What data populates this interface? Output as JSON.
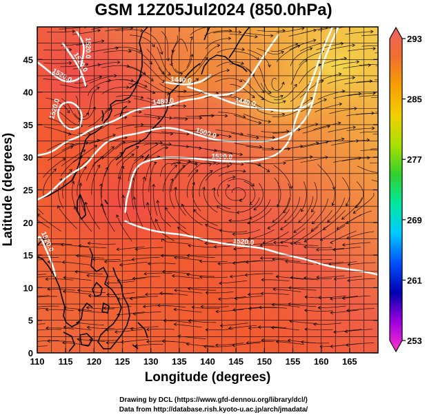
{
  "title": "GSM 12Z05Jul2024 (850.0hPa)",
  "axes": {
    "xlabel": "Longitude (degrees)",
    "ylabel": "Latitude  (degrees)",
    "x_range": [
      110,
      170
    ],
    "y_range": [
      0,
      50
    ],
    "x_ticks": [
      {
        "value": 110,
        "label": "110"
      },
      {
        "value": 115,
        "label": "115"
      },
      {
        "value": 120,
        "label": "120"
      },
      {
        "value": 125,
        "label": "125"
      },
      {
        "value": 130,
        "label": "130"
      },
      {
        "value": 135,
        "label": "135"
      },
      {
        "value": 140,
        "label": "140"
      },
      {
        "value": 145,
        "label": "145"
      },
      {
        "value": 150,
        "label": "150"
      },
      {
        "value": 155,
        "label": "155"
      },
      {
        "value": 160,
        "label": "160"
      },
      {
        "value": 165,
        "label": "165"
      }
    ],
    "y_ticks": [
      {
        "value": 0,
        "label": "0"
      },
      {
        "value": 5,
        "label": "5"
      },
      {
        "value": 10,
        "label": "10"
      },
      {
        "value": 15,
        "label": "15"
      },
      {
        "value": 20,
        "label": "20"
      },
      {
        "value": 25,
        "label": "25"
      },
      {
        "value": 30,
        "label": "30"
      },
      {
        "value": 35,
        "label": "35"
      },
      {
        "value": 40,
        "label": "40"
      },
      {
        "value": 45,
        "label": "45"
      }
    ],
    "grid_step_degrees": 2.5
  },
  "colorbar": {
    "min": 253,
    "max": 293,
    "tick_labels": [
      {
        "value": 293,
        "label": "293"
      },
      {
        "value": 285,
        "label": "285"
      },
      {
        "value": 277,
        "label": "277"
      },
      {
        "value": 269,
        "label": "269"
      },
      {
        "value": 261,
        "label": "261"
      },
      {
        "value": 253,
        "label": "253"
      }
    ],
    "stops": [
      "#ff33cc",
      "#a000e0",
      "#0000b0",
      "#0050ff",
      "#00c8ff",
      "#00e8a0",
      "#30d030",
      "#a8e000",
      "#f0d000",
      "#f8a000",
      "#f07030",
      "#f06060"
    ]
  },
  "contours": [
    {
      "label": "1440.0",
      "points": [
        [
          132.5,
          41.5
        ],
        [
          134,
          41.3
        ],
        [
          136.5,
          41.1
        ],
        [
          139,
          41.6
        ],
        [
          140.5,
          42.6
        ]
      ]
    },
    {
      "label": "1440.0",
      "points": [
        [
          136.5,
          40.8
        ],
        [
          139,
          40.1
        ],
        [
          142,
          39.1
        ],
        [
          145,
          38.1
        ],
        [
          148,
          37.6
        ],
        [
          151,
          37.3
        ],
        [
          154,
          37.0
        ],
        [
          156.5,
          37.4
        ],
        [
          158.5,
          38.5
        ]
      ]
    },
    {
      "label": "1480.0",
      "points": [
        [
          110,
          30.3
        ],
        [
          112.5,
          30.7
        ],
        [
          115,
          32.4
        ],
        [
          117.5,
          33.2
        ],
        [
          120,
          34.6
        ],
        [
          122.5,
          35.2
        ],
        [
          124.5,
          36.0
        ],
        [
          126.5,
          37.0
        ],
        [
          128.5,
          37.5
        ],
        [
          131,
          37.8
        ],
        [
          133.5,
          38.0
        ],
        [
          136,
          38.8
        ],
        [
          138.5,
          39.0
        ],
        [
          140.5,
          39.6
        ],
        [
          142.5,
          39.5
        ],
        [
          144.5,
          39.8
        ],
        [
          146.5,
          40.8
        ],
        [
          148,
          43
        ],
        [
          149.5,
          45
        ],
        [
          151,
          47
        ],
        [
          152.5,
          48.8
        ]
      ]
    },
    {
      "label": "1500.0",
      "points": [
        [
          110,
          23.5
        ],
        [
          112,
          24.3
        ],
        [
          114.5,
          26.5
        ],
        [
          116.5,
          27.8
        ],
        [
          118.5,
          28.7
        ],
        [
          120.5,
          31.0
        ],
        [
          122.5,
          32.6
        ],
        [
          125,
          33.3
        ],
        [
          127.5,
          33.6
        ],
        [
          130,
          34.2
        ],
        [
          132.5,
          34.6
        ],
        [
          135,
          34.3
        ],
        [
          138,
          33.5
        ],
        [
          141,
          32.7
        ],
        [
          144,
          32.4
        ],
        [
          147,
          32.5
        ],
        [
          150,
          32.4
        ],
        [
          152.5,
          32.8
        ],
        [
          155,
          33.8
        ],
        [
          157,
          35.5
        ],
        [
          158.2,
          37.5
        ],
        [
          158.8,
          39.5
        ],
        [
          159.5,
          42
        ],
        [
          160.5,
          45
        ],
        [
          162,
          48
        ],
        [
          163,
          50
        ]
      ]
    },
    {
      "label": "1520.0",
      "points": [
        [
          125.5,
          21.6
        ],
        [
          125.7,
          23.5
        ],
        [
          126.2,
          25.0
        ],
        [
          126.8,
          27.5
        ],
        [
          128,
          29.0
        ],
        [
          130,
          29.6
        ],
        [
          132.5,
          30.0
        ],
        [
          135,
          30.0
        ],
        [
          138,
          29.8
        ],
        [
          141,
          29.5
        ],
        [
          144,
          29.4
        ],
        [
          147,
          29.3
        ],
        [
          150,
          29.7
        ],
        [
          152.5,
          30.5
        ],
        [
          154.5,
          32.5
        ],
        [
          155.5,
          36.0
        ],
        [
          157,
          39
        ],
        [
          158.5,
          42
        ],
        [
          160,
          46
        ],
        [
          161,
          48
        ],
        [
          162,
          50
        ]
      ]
    },
    {
      "label": "1520.0",
      "points": [
        [
          109.6,
          15.4
        ],
        [
          110,
          17.5
        ],
        [
          110.5,
          18.0
        ],
        [
          111.7,
          15.6
        ],
        [
          112.7,
          13.5
        ],
        [
          113.2,
          11.8
        ]
      ]
    },
    {
      "label": "1520.0",
      "points": [
        [
          125.5,
          20.2
        ],
        [
          127,
          19.6
        ],
        [
          130,
          18.8
        ],
        [
          132.5,
          18.4
        ],
        [
          135,
          18.2
        ],
        [
          137.5,
          17.8
        ],
        [
          140,
          17.2
        ],
        [
          142.5,
          16.8
        ],
        [
          145,
          16.5
        ],
        [
          147.5,
          16.3
        ],
        [
          150,
          16.0
        ],
        [
          152.5,
          15.3
        ],
        [
          155,
          14.8
        ],
        [
          157.5,
          14.3
        ],
        [
          160,
          13.6
        ],
        [
          162.5,
          13.1
        ],
        [
          165,
          12.8
        ],
        [
          167.5,
          12.5
        ],
        [
          170,
          12.0
        ]
      ]
    },
    {
      "label": "1520.0",
      "points": [
        [
          114.5,
          47.5
        ],
        [
          116.5,
          45
        ],
        [
          117.5,
          43.5
        ],
        [
          118,
          42.5
        ],
        [
          118.5,
          41
        ]
      ]
    },
    {
      "label": "1520.0",
      "points": [
        [
          117,
          49.2
        ],
        [
          118.2,
          47.5
        ],
        [
          118.2,
          46
        ],
        [
          117.7,
          44
        ]
      ]
    },
    {
      "label": "1520.0",
      "points": [
        [
          110,
          44.6
        ],
        [
          111.5,
          43.6
        ],
        [
          113,
          42.5
        ],
        [
          115,
          41.5
        ],
        [
          117,
          41.8
        ],
        [
          118,
          42.6
        ]
      ]
    },
    {
      "label": "1520.0",
      "points": [
        [
          117.5,
          34.7
        ],
        [
          116,
          34.1
        ],
        [
          114.5,
          35.0
        ],
        [
          113.5,
          36.5
        ],
        [
          114,
          38.0
        ],
        [
          115.5,
          38.6
        ],
        [
          117,
          38.0
        ],
        [
          118,
          36.5
        ],
        [
          117.5,
          34.7
        ]
      ]
    }
  ]
}
